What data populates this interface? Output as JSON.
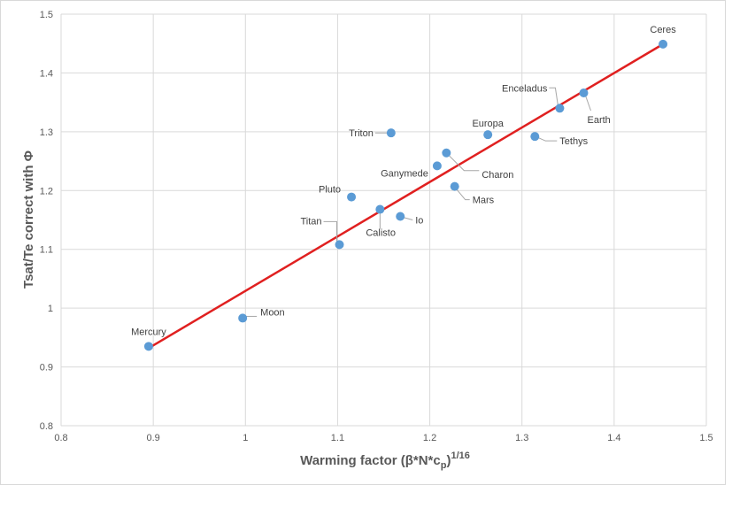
{
  "chart_data": {
    "type": "scatter",
    "title": "",
    "xlabel": "Warming factor  (β*N*c",
    "xlabel_sub": "p",
    "xlabel_tail": ")",
    "xlabel_sup": "1/16",
    "ylabel": "Tsat/Te correct with Φ",
    "xlim": [
      0.8,
      1.5
    ],
    "ylim": [
      0.8,
      1.5
    ],
    "xticks": [
      "0.8",
      "0.9",
      "1",
      "1.1",
      "1.2",
      "1.3",
      "1.4",
      "1.5"
    ],
    "yticks": [
      "0.8",
      "0.9",
      "1",
      "1.1",
      "1.2",
      "1.3",
      "1.4",
      "1.5"
    ],
    "grid": true,
    "legend": "none",
    "point_color": "#5b9bd5",
    "trendline_color": "#e02020",
    "series": [
      {
        "points": [
          {
            "name": "Mercury",
            "x": 0.895,
            "y": 0.935
          },
          {
            "name": "Moon",
            "x": 0.997,
            "y": 0.983
          },
          {
            "name": "Titan",
            "x": 1.102,
            "y": 1.108
          },
          {
            "name": "Pluto",
            "x": 1.115,
            "y": 1.189
          },
          {
            "name": "Calisto",
            "x": 1.146,
            "y": 1.168
          },
          {
            "name": "Io",
            "x": 1.168,
            "y": 1.156
          },
          {
            "name": "Triton",
            "x": 1.158,
            "y": 1.298
          },
          {
            "name": "Ganymede",
            "x": 1.208,
            "y": 1.242
          },
          {
            "name": "Charon",
            "x": 1.218,
            "y": 1.264
          },
          {
            "name": "Mars",
            "x": 1.227,
            "y": 1.207
          },
          {
            "name": "Europa",
            "x": 1.263,
            "y": 1.295
          },
          {
            "name": "Tethys",
            "x": 1.314,
            "y": 1.292
          },
          {
            "name": "Enceladus",
            "x": 1.341,
            "y": 1.34
          },
          {
            "name": "Earth",
            "x": 1.367,
            "y": 1.366
          },
          {
            "name": "Ceres",
            "x": 1.453,
            "y": 1.449
          }
        ]
      }
    ],
    "trendline": {
      "x": [
        0.895,
        1.453
      ],
      "y": [
        0.932,
        1.449
      ]
    }
  }
}
